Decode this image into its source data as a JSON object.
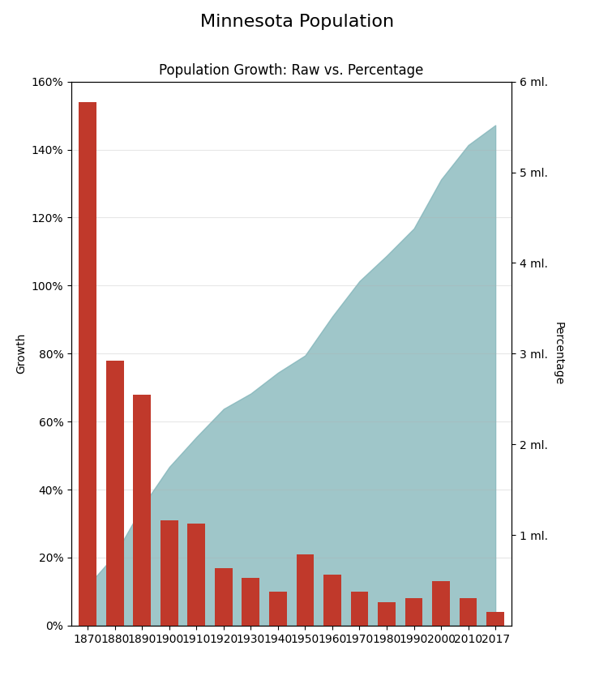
{
  "chart_data": {
    "type": "bar",
    "title": "Minnesota Population",
    "subtitle": "Population Growth: Raw vs. Percentage",
    "categories": [
      "1870",
      "1880",
      "1890",
      "1900",
      "1910",
      "1920",
      "1930",
      "1940",
      "1950",
      "1960",
      "1970",
      "1980",
      "1990",
      "2000",
      "2010",
      "2017"
    ],
    "ylabel": "Growth",
    "y2label": "Percentage",
    "series": [
      {
        "type": "bar",
        "color": "#c0392b",
        "values": [
          154,
          78,
          68,
          31,
          30,
          17,
          14,
          10,
          21,
          15,
          10,
          7,
          8,
          13,
          8,
          4
        ]
      },
      {
        "type": "area",
        "color": "#7fb3b8",
        "axis": "y2",
        "values": [
          0.44,
          0.78,
          1.31,
          1.75,
          2.08,
          2.39,
          2.56,
          2.79,
          2.98,
          3.41,
          3.8,
          4.08,
          4.38,
          4.92,
          5.3,
          5.52
        ]
      }
    ],
    "ylim": [
      0,
      160
    ],
    "yticks": [
      {
        "value": 0,
        "label": "0%"
      },
      {
        "value": 20,
        "label": "20%"
      },
      {
        "value": 40,
        "label": "40%"
      },
      {
        "value": 60,
        "label": "60%"
      },
      {
        "value": 80,
        "label": "80%"
      },
      {
        "value": 100,
        "label": "100%"
      },
      {
        "value": 120,
        "label": "120%"
      },
      {
        "value": 140,
        "label": "140%"
      },
      {
        "value": 160,
        "label": "160%"
      }
    ],
    "y2lim": [
      0,
      6
    ],
    "y2ticks": [
      {
        "value": 1,
        "label": "1 ml."
      },
      {
        "value": 2,
        "label": "2 ml."
      },
      {
        "value": 3,
        "label": "3 ml."
      },
      {
        "value": 4,
        "label": "4 ml."
      },
      {
        "value": 5,
        "label": "5 ml."
      },
      {
        "value": 6,
        "label": "6 ml."
      }
    ],
    "grid": true
  }
}
